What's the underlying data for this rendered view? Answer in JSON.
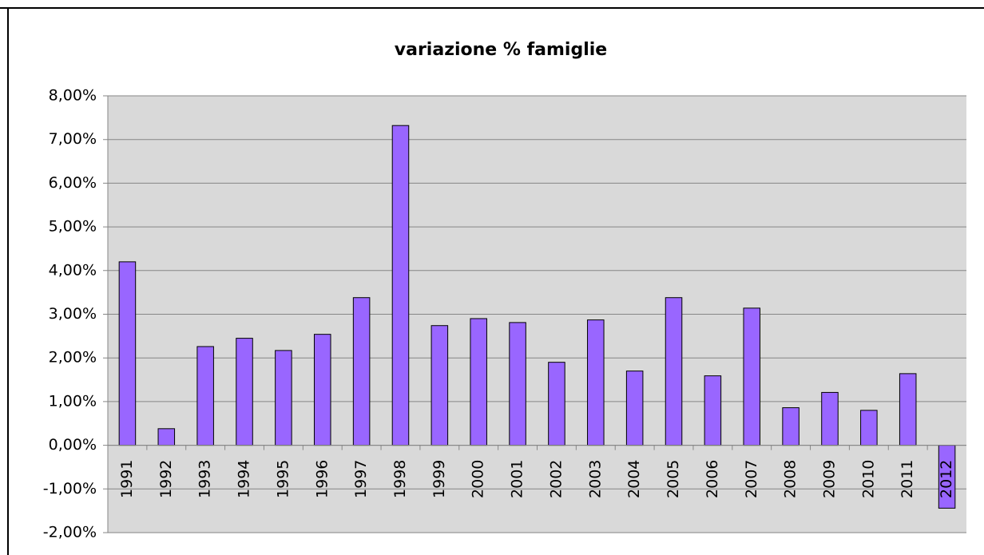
{
  "chart_data": {
    "type": "bar",
    "title": "variazione %  famiglie",
    "categories": [
      "1991",
      "1992",
      "1993",
      "1994",
      "1995",
      "1996",
      "1997",
      "1998",
      "1999",
      "2000",
      "2001",
      "2002",
      "2003",
      "2004",
      "2005",
      "2006",
      "2007",
      "2008",
      "2009",
      "2010",
      "2011",
      "2012"
    ],
    "values": [
      4.2,
      0.38,
      2.26,
      2.45,
      2.17,
      2.54,
      3.38,
      7.32,
      2.74,
      2.9,
      2.81,
      1.9,
      2.87,
      1.7,
      3.38,
      1.59,
      3.14,
      0.86,
      1.21,
      0.8,
      1.64,
      -1.44
    ],
    "color": "#9966ff",
    "ylim": [
      -2,
      8
    ],
    "yticks": [
      {
        "value": -2,
        "label": "-2,00%"
      },
      {
        "value": -1,
        "label": "-1,00%"
      },
      {
        "value": 0,
        "label": "0,00%"
      },
      {
        "value": 1,
        "label": "1,00%"
      },
      {
        "value": 2,
        "label": "2,00%"
      },
      {
        "value": 3,
        "label": "3,00%"
      },
      {
        "value": 4,
        "label": "4,00%"
      },
      {
        "value": 5,
        "label": "5,00%"
      },
      {
        "value": 6,
        "label": "6,00%"
      },
      {
        "value": 7,
        "label": "7,00%"
      },
      {
        "value": 8,
        "label": "8,00%"
      }
    ],
    "grid": true
  }
}
